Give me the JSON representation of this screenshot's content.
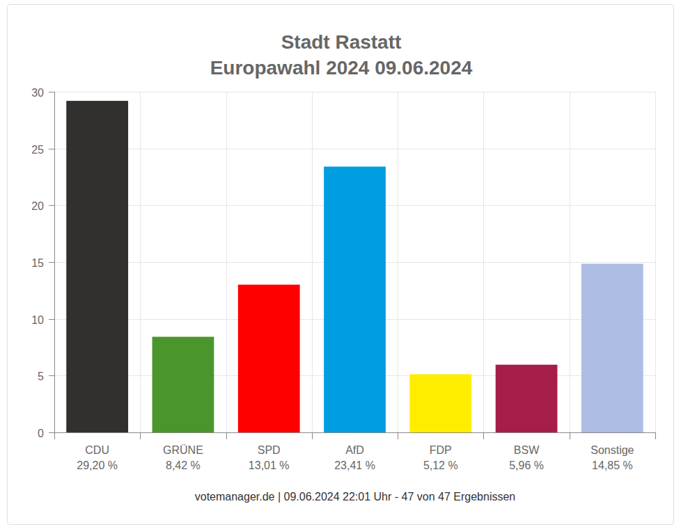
{
  "chart_data": {
    "type": "bar",
    "title": "Stadt Rastatt",
    "subtitle": "Europawahl 2024 09.06.2024",
    "categories": [
      "CDU",
      "GRÜNE",
      "SPD",
      "AfD",
      "FDP",
      "BSW",
      "Sonstige"
    ],
    "values": [
      29.2,
      8.42,
      13.01,
      23.41,
      5.12,
      5.96,
      14.85
    ],
    "value_labels": [
      "29,20 %",
      "8,42 %",
      "13,01 %",
      "23,41 %",
      "5,12 %",
      "5,96 %",
      "14,85 %"
    ],
    "colors": [
      "#32302e",
      "#4a962c",
      "#ff0000",
      "#009ee0",
      "#ffed00",
      "#a51e4a",
      "#aebde4"
    ],
    "data_labels": true,
    "ylim": [
      0,
      30
    ],
    "yticks": [
      0,
      5,
      10,
      15,
      20,
      25,
      30
    ],
    "grid": true,
    "annotations": [
      "votemanager.de | 09.06.2024 22:01 Uhr - 47 von 47 Ergebnissen"
    ]
  }
}
